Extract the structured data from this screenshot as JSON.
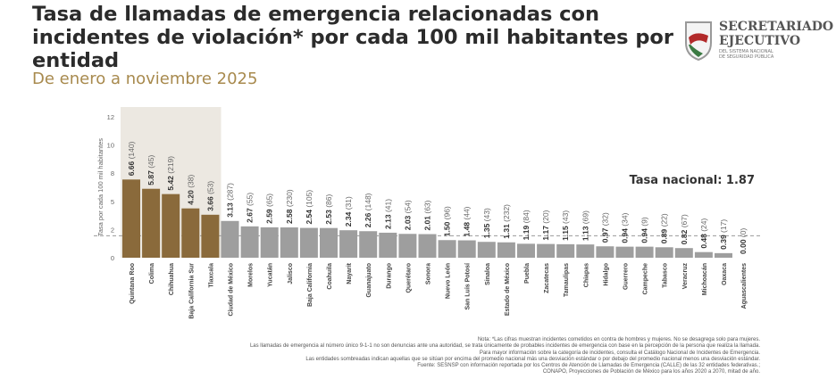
{
  "header": {
    "title": "Tasa de llamadas de emergencia relacionadas con incidentes de violación* por cada 100 mil habitantes por entidad",
    "subtitle": "De enero a noviembre 2025"
  },
  "logo": {
    "line1": "SECRETARIADO",
    "line2": "EJECUTIVO",
    "line3": "DEL SISTEMA NACIONAL",
    "line4": "DE SEGURIDAD PÚBLICA"
  },
  "notes": [
    "Nota: *Las cifras muestran incidentes cometidos en contra de hombres y mujeres. No se desagrega solo para mujeres.",
    "Las llamadas de emergencia al número único 9-1-1 no son denuncias ante una autoridad, se trata únicamente de probables incidentes de emergencia con base en la percepción de la persona que realiza la llamada.",
    "Para mayor información sobre la categoría de incidentes, consulta el Catálogo Nacional de Incidentes de Emergencia.",
    "Las entidades sombreadas indican aquellas que se sitúan por encima del promedio nacional más una desviación estándar o por debajo del promedio nacional menos una desviación estándar.",
    "Fuente: SESNSP con información reportada por los Centros de Atención de Llamadas de Emergencia (CALLE) de las 32 entidades federativas.;",
    "CONAPO, Proyecciones de Población de México para los años 2020 a 2070, mitad de año."
  ],
  "colors": {
    "highlight": "#8a6a3b",
    "normal": "#9e9e9e",
    "shade": "#ece8e1",
    "line": "#999999"
  },
  "chart_data": {
    "type": "bar",
    "title": "Tasa de llamadas de emergencia relacionadas con incidentes de violación* por cada 100 mil habitantes por entidad",
    "ylabel": "Tasa por cada 100 mil habitantes",
    "xlabel": "",
    "ylim": [
      0,
      12
    ],
    "ytick_labels": [
      "0",
      "2",
      "5",
      "8",
      "10",
      "12"
    ],
    "national_rate_label": "Tasa nacional: 1.87",
    "national_rate": 1.87,
    "categories": [
      "Quintana Roo",
      "Colima",
      "Chihuahua",
      "Baja California Sur",
      "Tlaxcala",
      "Ciudad de México",
      "Morelos",
      "Yucatán",
      "Jalisco",
      "Baja California",
      "Coahuila",
      "Nayarit",
      "Guanajuato",
      "Durango",
      "Querétaro",
      "Sonora",
      "Nuevo León",
      "San Luis Potosí",
      "Sinaloa",
      "Estado de México",
      "Puebla",
      "Zacatecas",
      "Tamaulipas",
      "Chiapas",
      "Hidalgo",
      "Guerrero",
      "Campeche",
      "Tabasco",
      "Veracruz",
      "Michoacán",
      "Oaxaca",
      "Aguascalientes"
    ],
    "values": [
      6.66,
      5.87,
      5.42,
      4.2,
      3.66,
      3.13,
      2.67,
      2.59,
      2.58,
      2.54,
      2.53,
      2.34,
      2.26,
      2.13,
      2.03,
      2.01,
      1.5,
      1.48,
      1.35,
      1.31,
      1.19,
      1.17,
      1.15,
      1.13,
      0.97,
      0.94,
      0.94,
      0.89,
      0.82,
      0.48,
      0.39,
      0.0
    ],
    "value_labels": [
      "6.66",
      "5.87",
      "5.42",
      "4.20",
      "3.66",
      "3.13",
      "2.67",
      "2.59",
      "2.58",
      "2.54",
      "2.53",
      "2.34",
      "2.26",
      "2.13",
      "2.03",
      "2.01",
      "1.50",
      "1.48",
      "1.35",
      "1.31",
      "1.19",
      "1.17",
      "1.15",
      "1.13",
      "0.97",
      "0.94",
      "0.94",
      "0.89",
      "0.82",
      "0.48",
      "0.39",
      "0.00"
    ],
    "counts": [
      "(140)",
      "(45)",
      "(219)",
      "(38)",
      "(53)",
      "(287)",
      "(55)",
      "(65)",
      "(230)",
      "(105)",
      "(86)",
      "(31)",
      "(148)",
      "(41)",
      "(54)",
      "(63)",
      "(96)",
      "(44)",
      "(43)",
      "(232)",
      "(84)",
      "(20)",
      "(43)",
      "(69)",
      "(32)",
      "(34)",
      "(9)",
      "(22)",
      "(67)",
      "(24)",
      "(17)",
      "(0)"
    ],
    "highlighted_count": 5
  }
}
